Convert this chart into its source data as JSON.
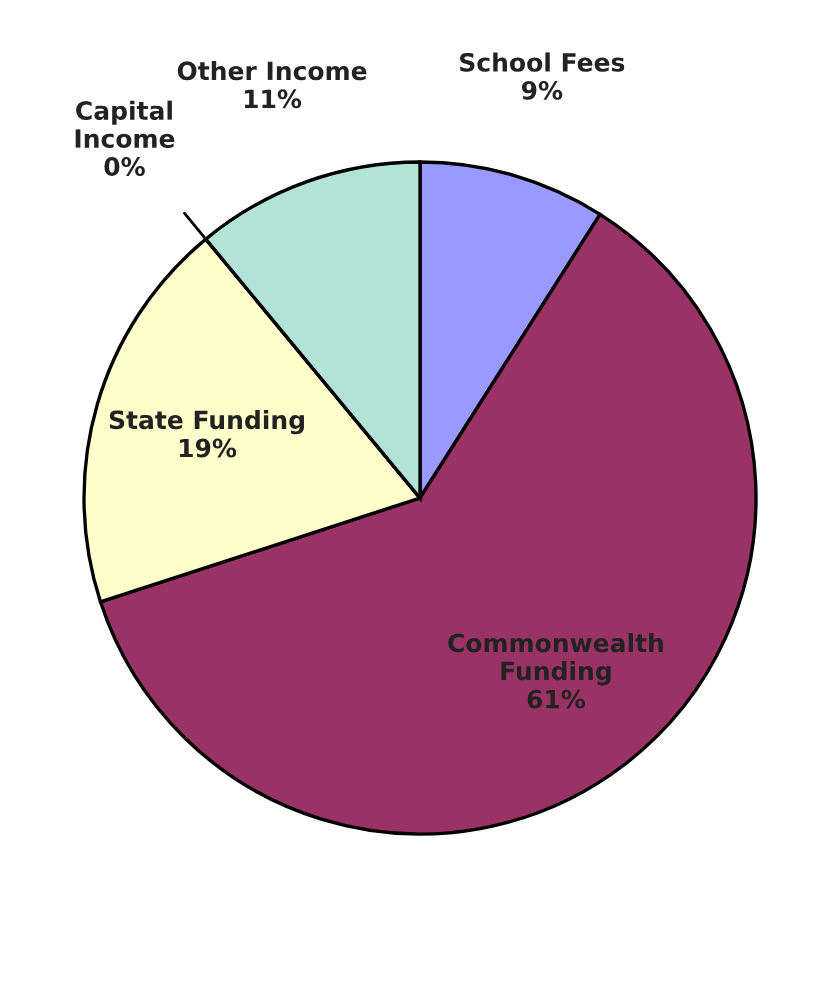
{
  "chart_data": {
    "type": "pie",
    "categories": [
      "School Fees",
      "Commonwealth Funding",
      "State Funding",
      "Capital Income",
      "Other Income"
    ],
    "values": [
      9,
      61,
      19,
      0,
      11
    ],
    "colors": [
      "#9999ff",
      "#993366",
      "#ffffcc",
      "#ffffcc",
      "#b3e3d6"
    ],
    "value_labels": [
      "9%",
      "61%",
      "19%",
      "0%",
      "11%"
    ],
    "legend": false
  }
}
